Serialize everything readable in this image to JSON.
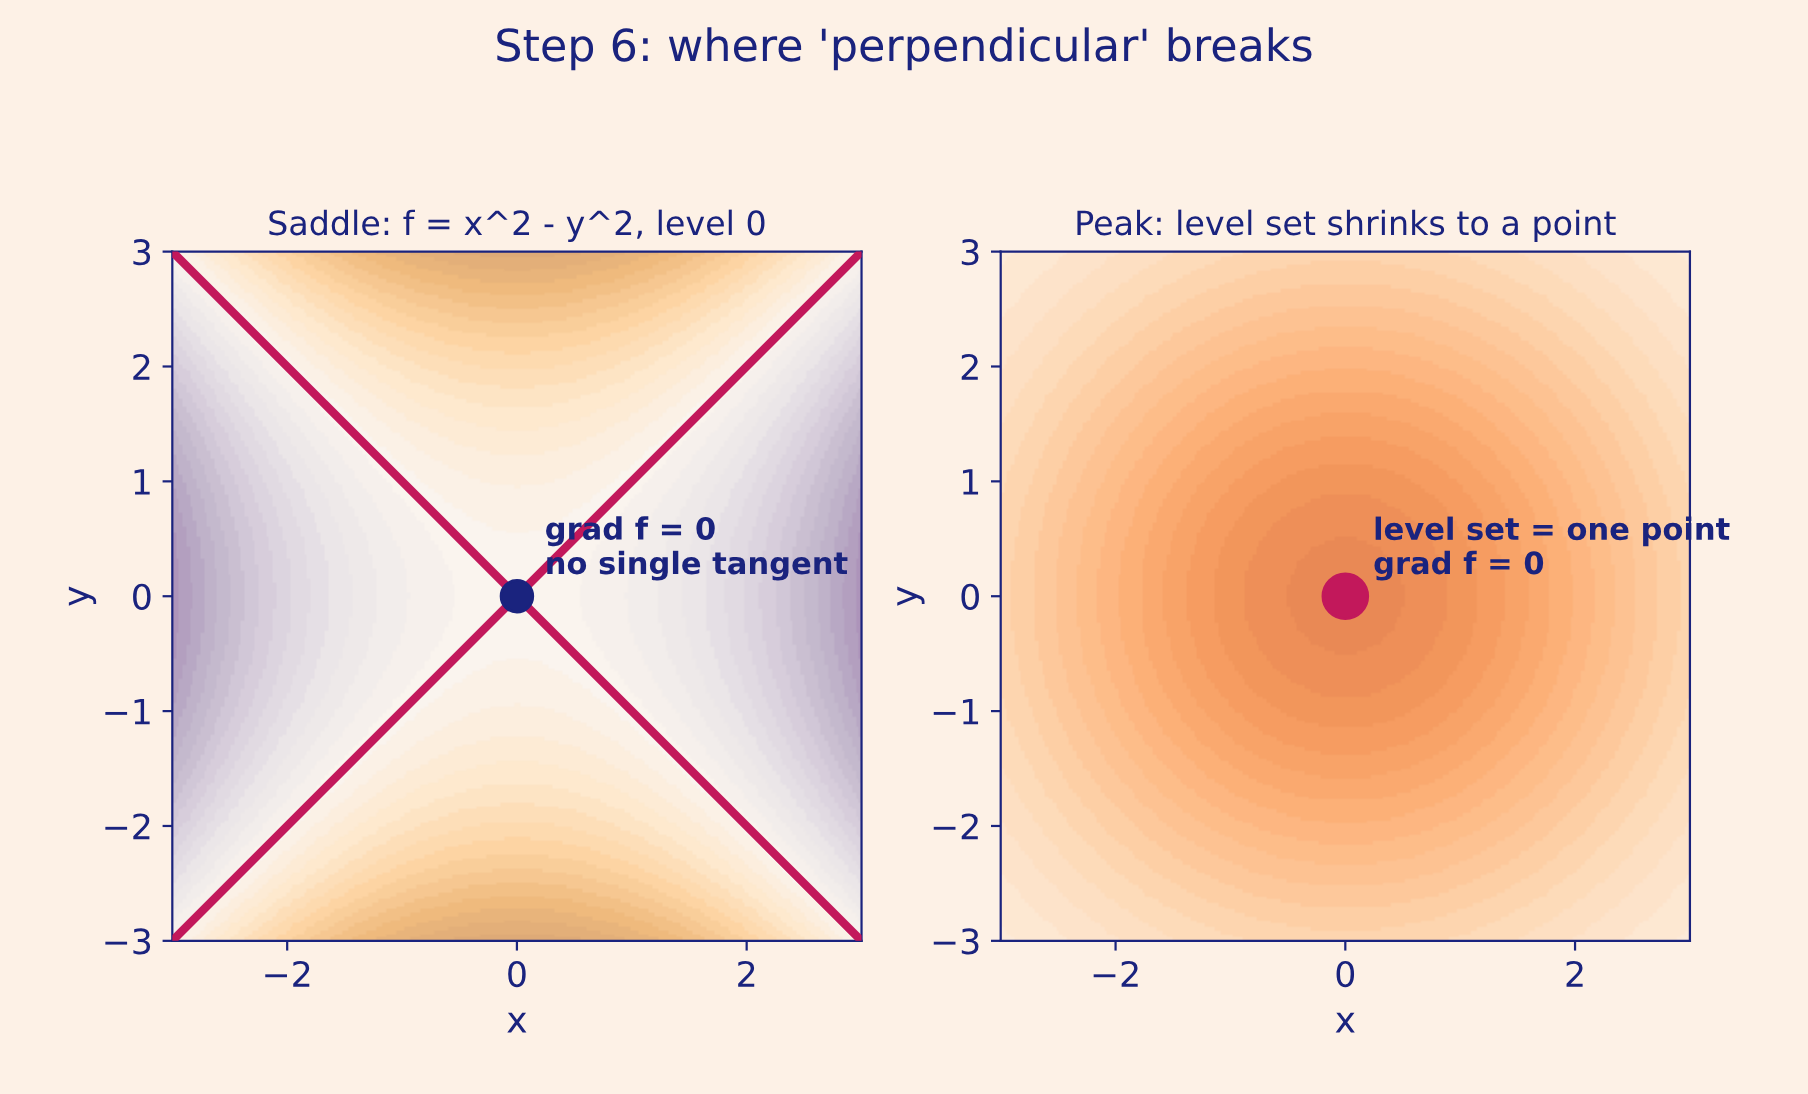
{
  "chart_data": [
    {
      "type": "line",
      "title": "Saddle: f = x^2 - y^2, level 0",
      "xlabel": "x",
      "ylabel": "y",
      "annotations": [
        "Step 6: where 'perpendicular' breaks",
        {
          "text": "grad f = 0\nno single tangent",
          "x": 0,
          "y": 0
        }
      ],
      "xlim": [
        -3,
        3
      ],
      "ylim": [
        -3,
        3
      ],
      "xticks": [
        {
          "value": -2,
          "label": "−2"
        },
        0,
        2
      ],
      "yticks": [
        {
          "value": -3,
          "label": "−3"
        },
        {
          "value": -2,
          "label": "−2"
        },
        {
          "value": -1,
          "label": "−1"
        },
        0,
        1,
        2,
        3
      ],
      "series": [
        {
          "color": "#c2185b",
          "x": [
            -3,
            3
          ],
          "values": [
            -3,
            3
          ]
        },
        {
          "color": "#c2185b",
          "x": [
            -3,
            3
          ],
          "values": [
            3,
            -3
          ]
        },
        {
          "type": "scatter",
          "color": "#1a237e",
          "x": [
            0
          ],
          "values": [
            0
          ],
          "marker": "circle"
        }
      ],
      "grid": false,
      "legend": false
    },
    {
      "type": "scatter",
      "title": "Peak: level set shrinks to a point",
      "xlabel": "x",
      "ylabel": "y",
      "annotations": [
        {
          "text": "level set = one point\ngrad f = 0",
          "x": 0,
          "y": 0
        }
      ],
      "xlim": [
        -3,
        3
      ],
      "ylim": [
        -3,
        3
      ],
      "xticks": [
        {
          "value": -2,
          "label": "−2"
        },
        0,
        2
      ],
      "yticks": [
        {
          "value": -3,
          "label": "−3"
        },
        {
          "value": -2,
          "label": "−2"
        },
        {
          "value": -1,
          "label": "−1"
        },
        0,
        1,
        2,
        3
      ],
      "series": [
        {
          "color": "#c2185b",
          "x": [
            0
          ],
          "values": [
            0
          ],
          "marker": "circle"
        }
      ],
      "grid": false,
      "legend": false
    }
  ]
}
